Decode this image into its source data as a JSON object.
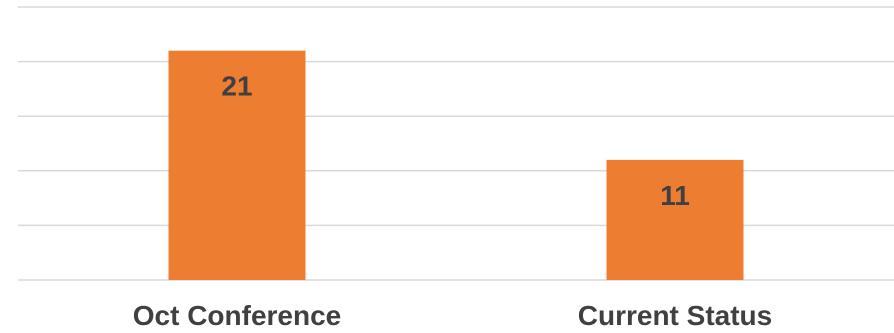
{
  "chart_data": {
    "type": "bar",
    "title": "",
    "xlabel": "",
    "ylabel": "",
    "categories": [
      "Oct Conference",
      "Current Status"
    ],
    "values": [
      21,
      11
    ],
    "data_labels": [
      "21",
      "11"
    ],
    "ylim": [
      0,
      25
    ],
    "grid": true,
    "legend": "none",
    "colors": {
      "bar": "#ed7d31",
      "gridline": "#d9d9d9",
      "text": "#404040"
    }
  }
}
